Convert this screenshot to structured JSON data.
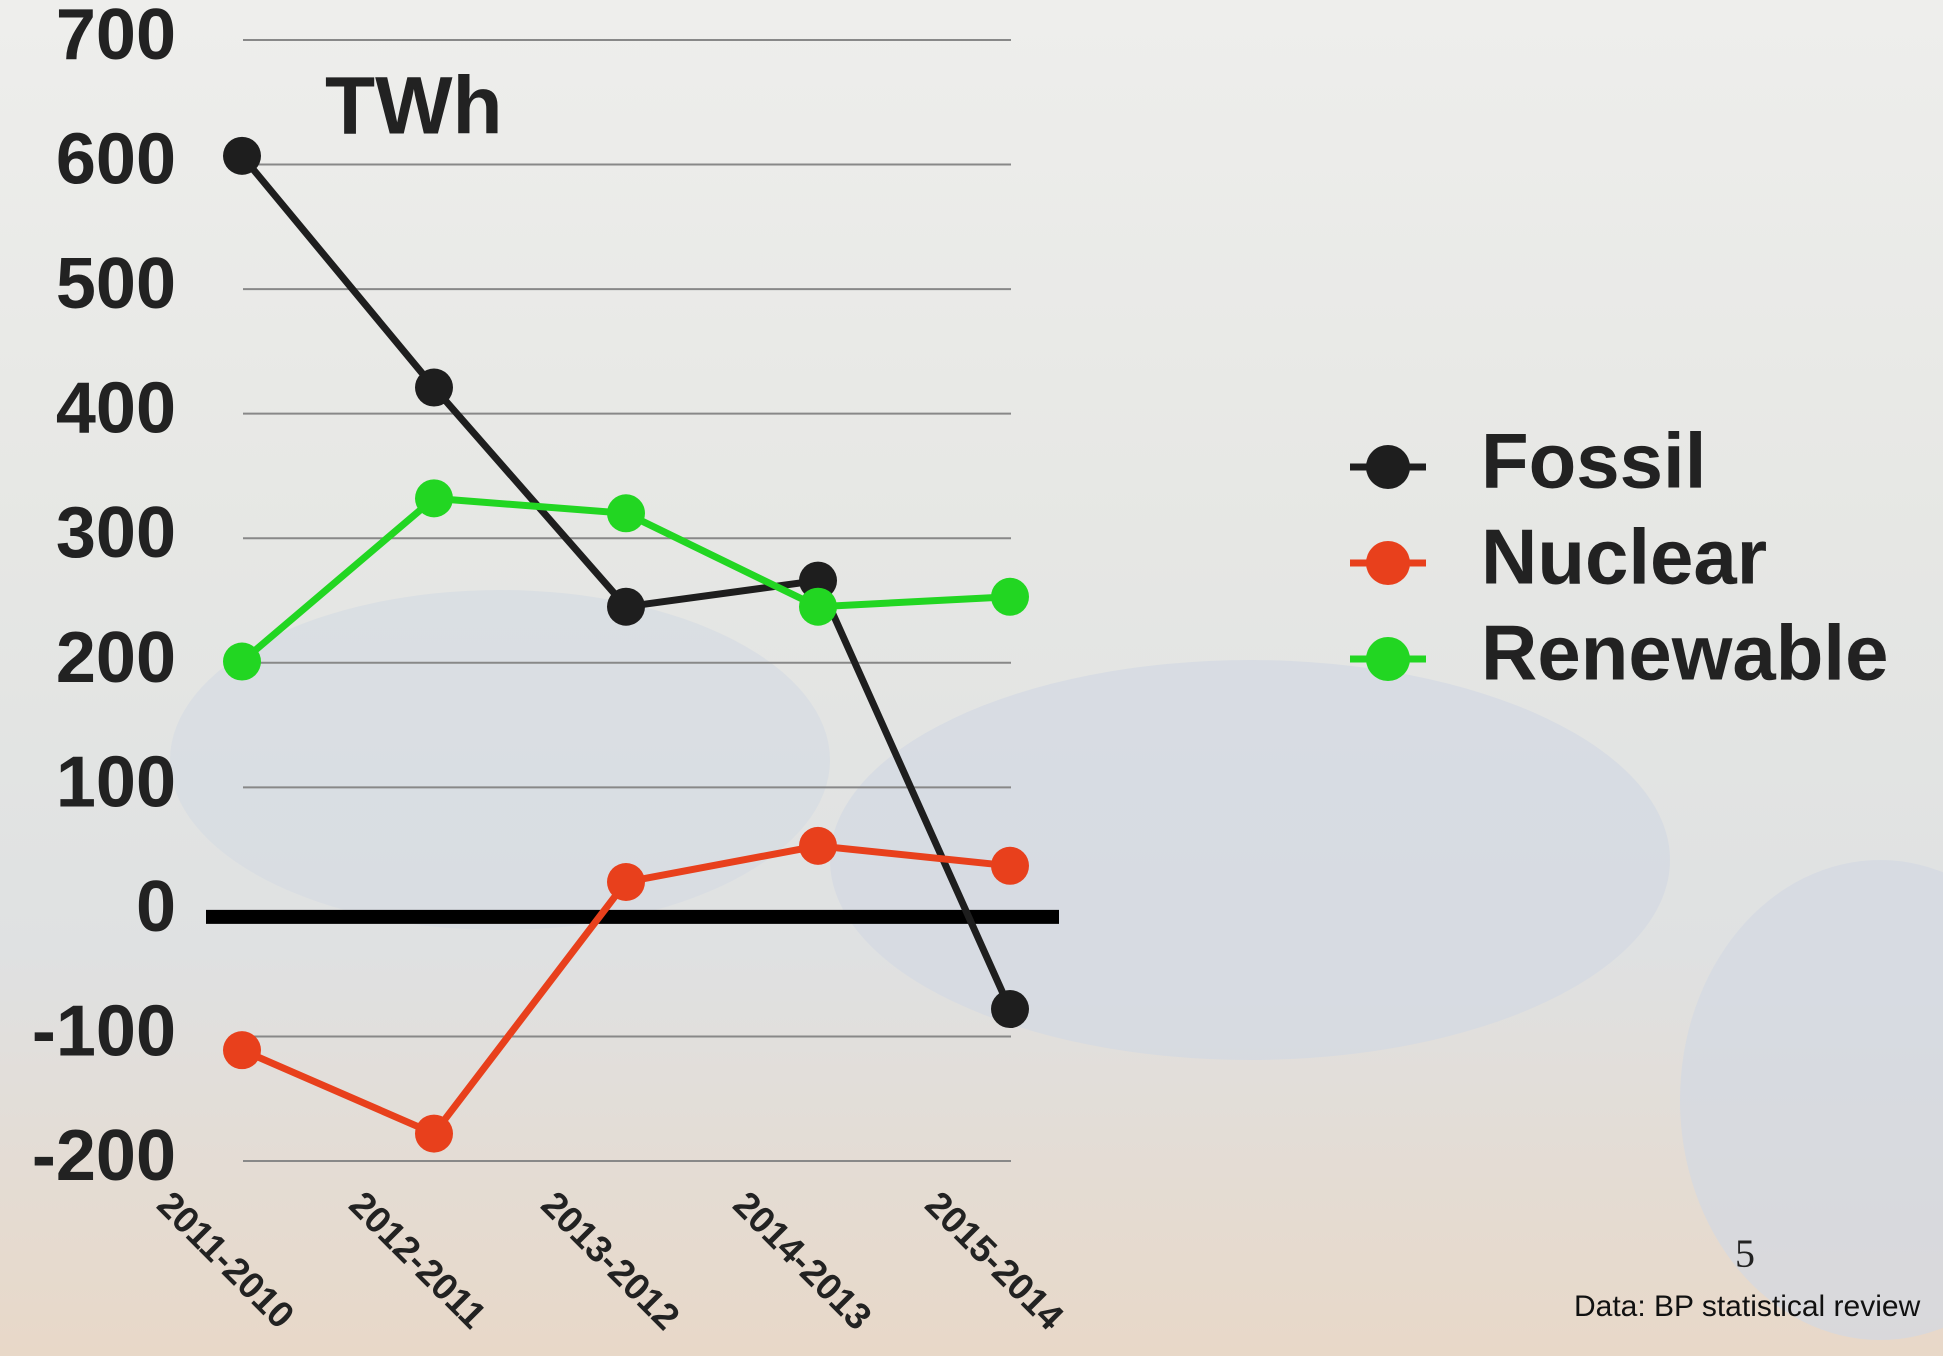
{
  "chart_data": {
    "type": "line",
    "title": "TWh",
    "categories": [
      "2011-2010",
      "2012-2011",
      "2013-2012",
      "2014-2013",
      "2015-2014"
    ],
    "series": [
      {
        "name": "Fossil",
        "color": "#1e1e1e",
        "values": [
          607,
          421,
          245,
          266,
          -78
        ]
      },
      {
        "name": "Nuclear",
        "color": "#e8401c",
        "values": [
          -111,
          -178,
          24,
          53,
          37
        ]
      },
      {
        "name": "Renewable",
        "color": "#22d622",
        "values": [
          201,
          332,
          320,
          245,
          253
        ]
      }
    ],
    "ylim": [
      -200,
      700
    ],
    "yticks": [
      -200,
      -100,
      0,
      100,
      200,
      300,
      400,
      500,
      600,
      700
    ],
    "grid": true,
    "legend": "right",
    "page_number": "5",
    "source": "Data: BP statistical review"
  }
}
